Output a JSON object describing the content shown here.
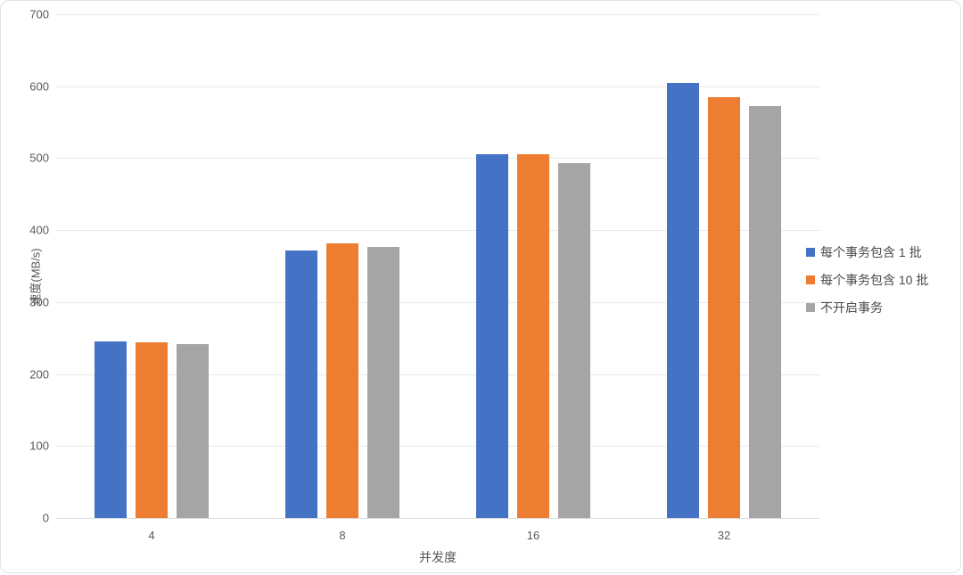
{
  "chart_data": {
    "type": "bar",
    "title": "",
    "xlabel": "并发度",
    "ylabel": "速度(MB/s)",
    "categories": [
      "4",
      "8",
      "16",
      "32"
    ],
    "series": [
      {
        "name": "每个事务包含 1 批",
        "color": "#4472C4",
        "values": [
          245,
          372,
          505,
          605
        ]
      },
      {
        "name": "每个事务包含 10 批",
        "color": "#ED7D31",
        "values": [
          244,
          382,
          505,
          585
        ]
      },
      {
        "name": "不开启事务",
        "color": "#A5A5A5",
        "values": [
          241,
          377,
          493,
          573
        ]
      }
    ],
    "ylim": [
      0,
      700
    ],
    "yticks": [
      0,
      100,
      200,
      300,
      400,
      500,
      600,
      700
    ],
    "grid": true,
    "legend_position": "right"
  },
  "colors": {
    "gridline": "#e9e9e9",
    "baseline": "#d9d9d9",
    "tick_text": "#595959",
    "legend_text": "#4a4a4a",
    "background": "#ffffff"
  }
}
